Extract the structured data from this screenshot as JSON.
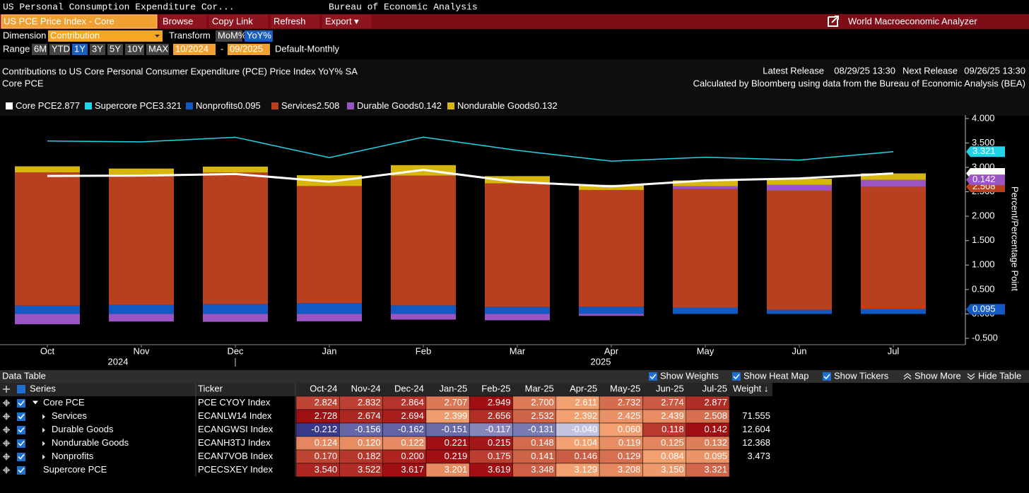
{
  "header": {
    "title": "US Personal Consumption Expenditure Cor...",
    "source": "Bureau of Economic Analysis"
  },
  "toolbar": {
    "security": "US PCE Price Index - Core",
    "buttons": [
      "Browse",
      "Copy Link",
      "Refresh",
      "Export ▾"
    ],
    "app": "World Macroeconomic Analyzer"
  },
  "controls": {
    "dimension_label": "Dimension",
    "dimension": "Contribution",
    "transform_label": "Transform",
    "transforms": [
      {
        "label": "MoM%",
        "selected": false
      },
      {
        "label": "YoY%",
        "selected": true
      }
    ],
    "range_label": "Range",
    "ranges": [
      {
        "label": "6M",
        "selected": false
      },
      {
        "label": "YTD",
        "selected": false
      },
      {
        "label": "1Y",
        "selected": true
      },
      {
        "label": "3Y",
        "selected": false
      },
      {
        "label": "5Y",
        "selected": false
      },
      {
        "label": "10Y",
        "selected": false
      },
      {
        "label": "MAX",
        "selected": false
      }
    ],
    "start": "10/2024",
    "separator": "-",
    "end": "09/2025",
    "frequency": "Default-Monthly"
  },
  "chart_data": {
    "type": "bar",
    "stacked": true,
    "title": "Contributions to US Core Personal Consumer Expenditure (PCE) Price Index YoY% SA",
    "subtitle": "Core PCE",
    "release": {
      "latest_label": "Latest Release",
      "latest": "08/29/25 13:30",
      "next_label": "Next Release",
      "next": "09/26/25 13:30"
    },
    "note": "Calculated by Bloomberg using data from the Bureau of Economic Analysis (BEA)",
    "ylabel": "Percent/Percentage Point",
    "categories": [
      "Oct",
      "Nov",
      "Dec",
      "Jan",
      "Feb",
      "Mar",
      "Apr",
      "May",
      "Jun",
      "Jul"
    ],
    "years": [
      "2024",
      "2025"
    ],
    "ylim": [
      -0.63,
      4.07
    ],
    "yticks": [
      {
        "value": -0.5,
        "label": "-0.500"
      },
      {
        "value": 0,
        "label": "0.000"
      },
      {
        "value": 0.5,
        "label": "0.500"
      },
      {
        "value": 1,
        "label": "1.000"
      },
      {
        "value": 1.5,
        "label": "1.500"
      },
      {
        "value": 2,
        "label": "2.000"
      },
      {
        "value": 2.5,
        "label": "2.500"
      },
      {
        "value": 3,
        "label": "3.000"
      },
      {
        "value": 3.5,
        "label": "3.500"
      },
      {
        "value": 4,
        "label": "4.000"
      }
    ],
    "series": [
      {
        "name": "Core PCE",
        "type": "line",
        "color": "#ffffff",
        "ticker": "PCE CYOY Index",
        "values": [
          2.824,
          2.832,
          2.864,
          2.707,
          2.949,
          2.7,
          2.611,
          2.732,
          2.774,
          2.877
        ],
        "value_labels": [
          "2.824",
          "2.832",
          "2.864",
          "2.707",
          "2.949",
          "2.700",
          "2.611",
          "2.732",
          "2.774",
          "2.877"
        ]
      },
      {
        "name": "Supercore PCE",
        "type": "line",
        "color": "#21d4e8",
        "ticker": "PCECSXEY Index",
        "values": [
          3.54,
          3.522,
          3.617,
          3.201,
          3.619,
          3.348,
          3.129,
          3.208,
          3.15,
          3.321
        ],
        "value_labels": [
          "3.540",
          "3.522",
          "3.617",
          "3.201",
          "3.619",
          "3.348",
          "3.129",
          "3.208",
          "3.150",
          "3.321"
        ]
      },
      {
        "name": "Nonprofits",
        "type": "bar",
        "color": "#1259c3",
        "ticker": "ECAN7VOB Index",
        "weight": 3.473,
        "values": [
          0.17,
          0.182,
          0.2,
          0.219,
          0.175,
          0.141,
          0.146,
          0.129,
          0.084,
          0.095
        ],
        "value_labels": [
          "0.170",
          "0.182",
          "0.200",
          "0.219",
          "0.175",
          "0.141",
          "0.146",
          "0.129",
          "0.084",
          "0.095"
        ]
      },
      {
        "name": "Services",
        "type": "bar",
        "color": "#b8401e",
        "ticker": "ECANLW14 Index",
        "weight": 71.555,
        "values": [
          2.728,
          2.674,
          2.694,
          2.399,
          2.656,
          2.532,
          2.392,
          2.425,
          2.439,
          2.508
        ],
        "value_labels": [
          "2.728",
          "2.674",
          "2.694",
          "2.399",
          "2.656",
          "2.532",
          "2.392",
          "2.425",
          "2.439",
          "2.508"
        ]
      },
      {
        "name": "Durable Goods",
        "type": "bar",
        "color": "#9a55c2",
        "ticker": "ECANGWSI Index",
        "weight": 12.604,
        "values": [
          -0.212,
          -0.156,
          -0.162,
          -0.151,
          -0.117,
          -0.131,
          -0.04,
          0.06,
          0.118,
          0.142
        ],
        "value_labels": [
          "-0.212",
          "-0.156",
          "-0.162",
          "-0.151",
          "-0.117",
          "-0.131",
          "-0.040",
          "0.060",
          "0.118",
          "0.142"
        ]
      },
      {
        "name": "Nondurable Goods",
        "type": "bar",
        "color": "#d8b70c",
        "ticker": "ECANH3TJ Index",
        "weight": 12.368,
        "values": [
          0.124,
          0.12,
          0.122,
          0.221,
          0.215,
          0.148,
          0.104,
          0.119,
          0.125,
          0.132
        ],
        "value_labels": [
          "0.124",
          "0.120",
          "0.122",
          "0.221",
          "0.215",
          "0.148",
          "0.104",
          "0.119",
          "0.125",
          "0.132"
        ]
      }
    ]
  },
  "table": {
    "title": "Data Table",
    "options": [
      {
        "label": "Show Weights",
        "checked": true
      },
      {
        "label": "Show Heat Map",
        "checked": true
      },
      {
        "label": "Show Tickers",
        "checked": true
      },
      {
        "label": "Show More"
      },
      {
        "label": "Hide Table"
      }
    ],
    "columns": {
      "series": "Series",
      "ticker": "Ticker",
      "periods": [
        "Oct-24",
        "Nov-24",
        "Dec-24",
        "Jan-25",
        "Feb-25",
        "Mar-25",
        "Apr-25",
        "May-25",
        "Jun-25",
        "Jul-25"
      ],
      "weight": "Weight ↓"
    }
  }
}
